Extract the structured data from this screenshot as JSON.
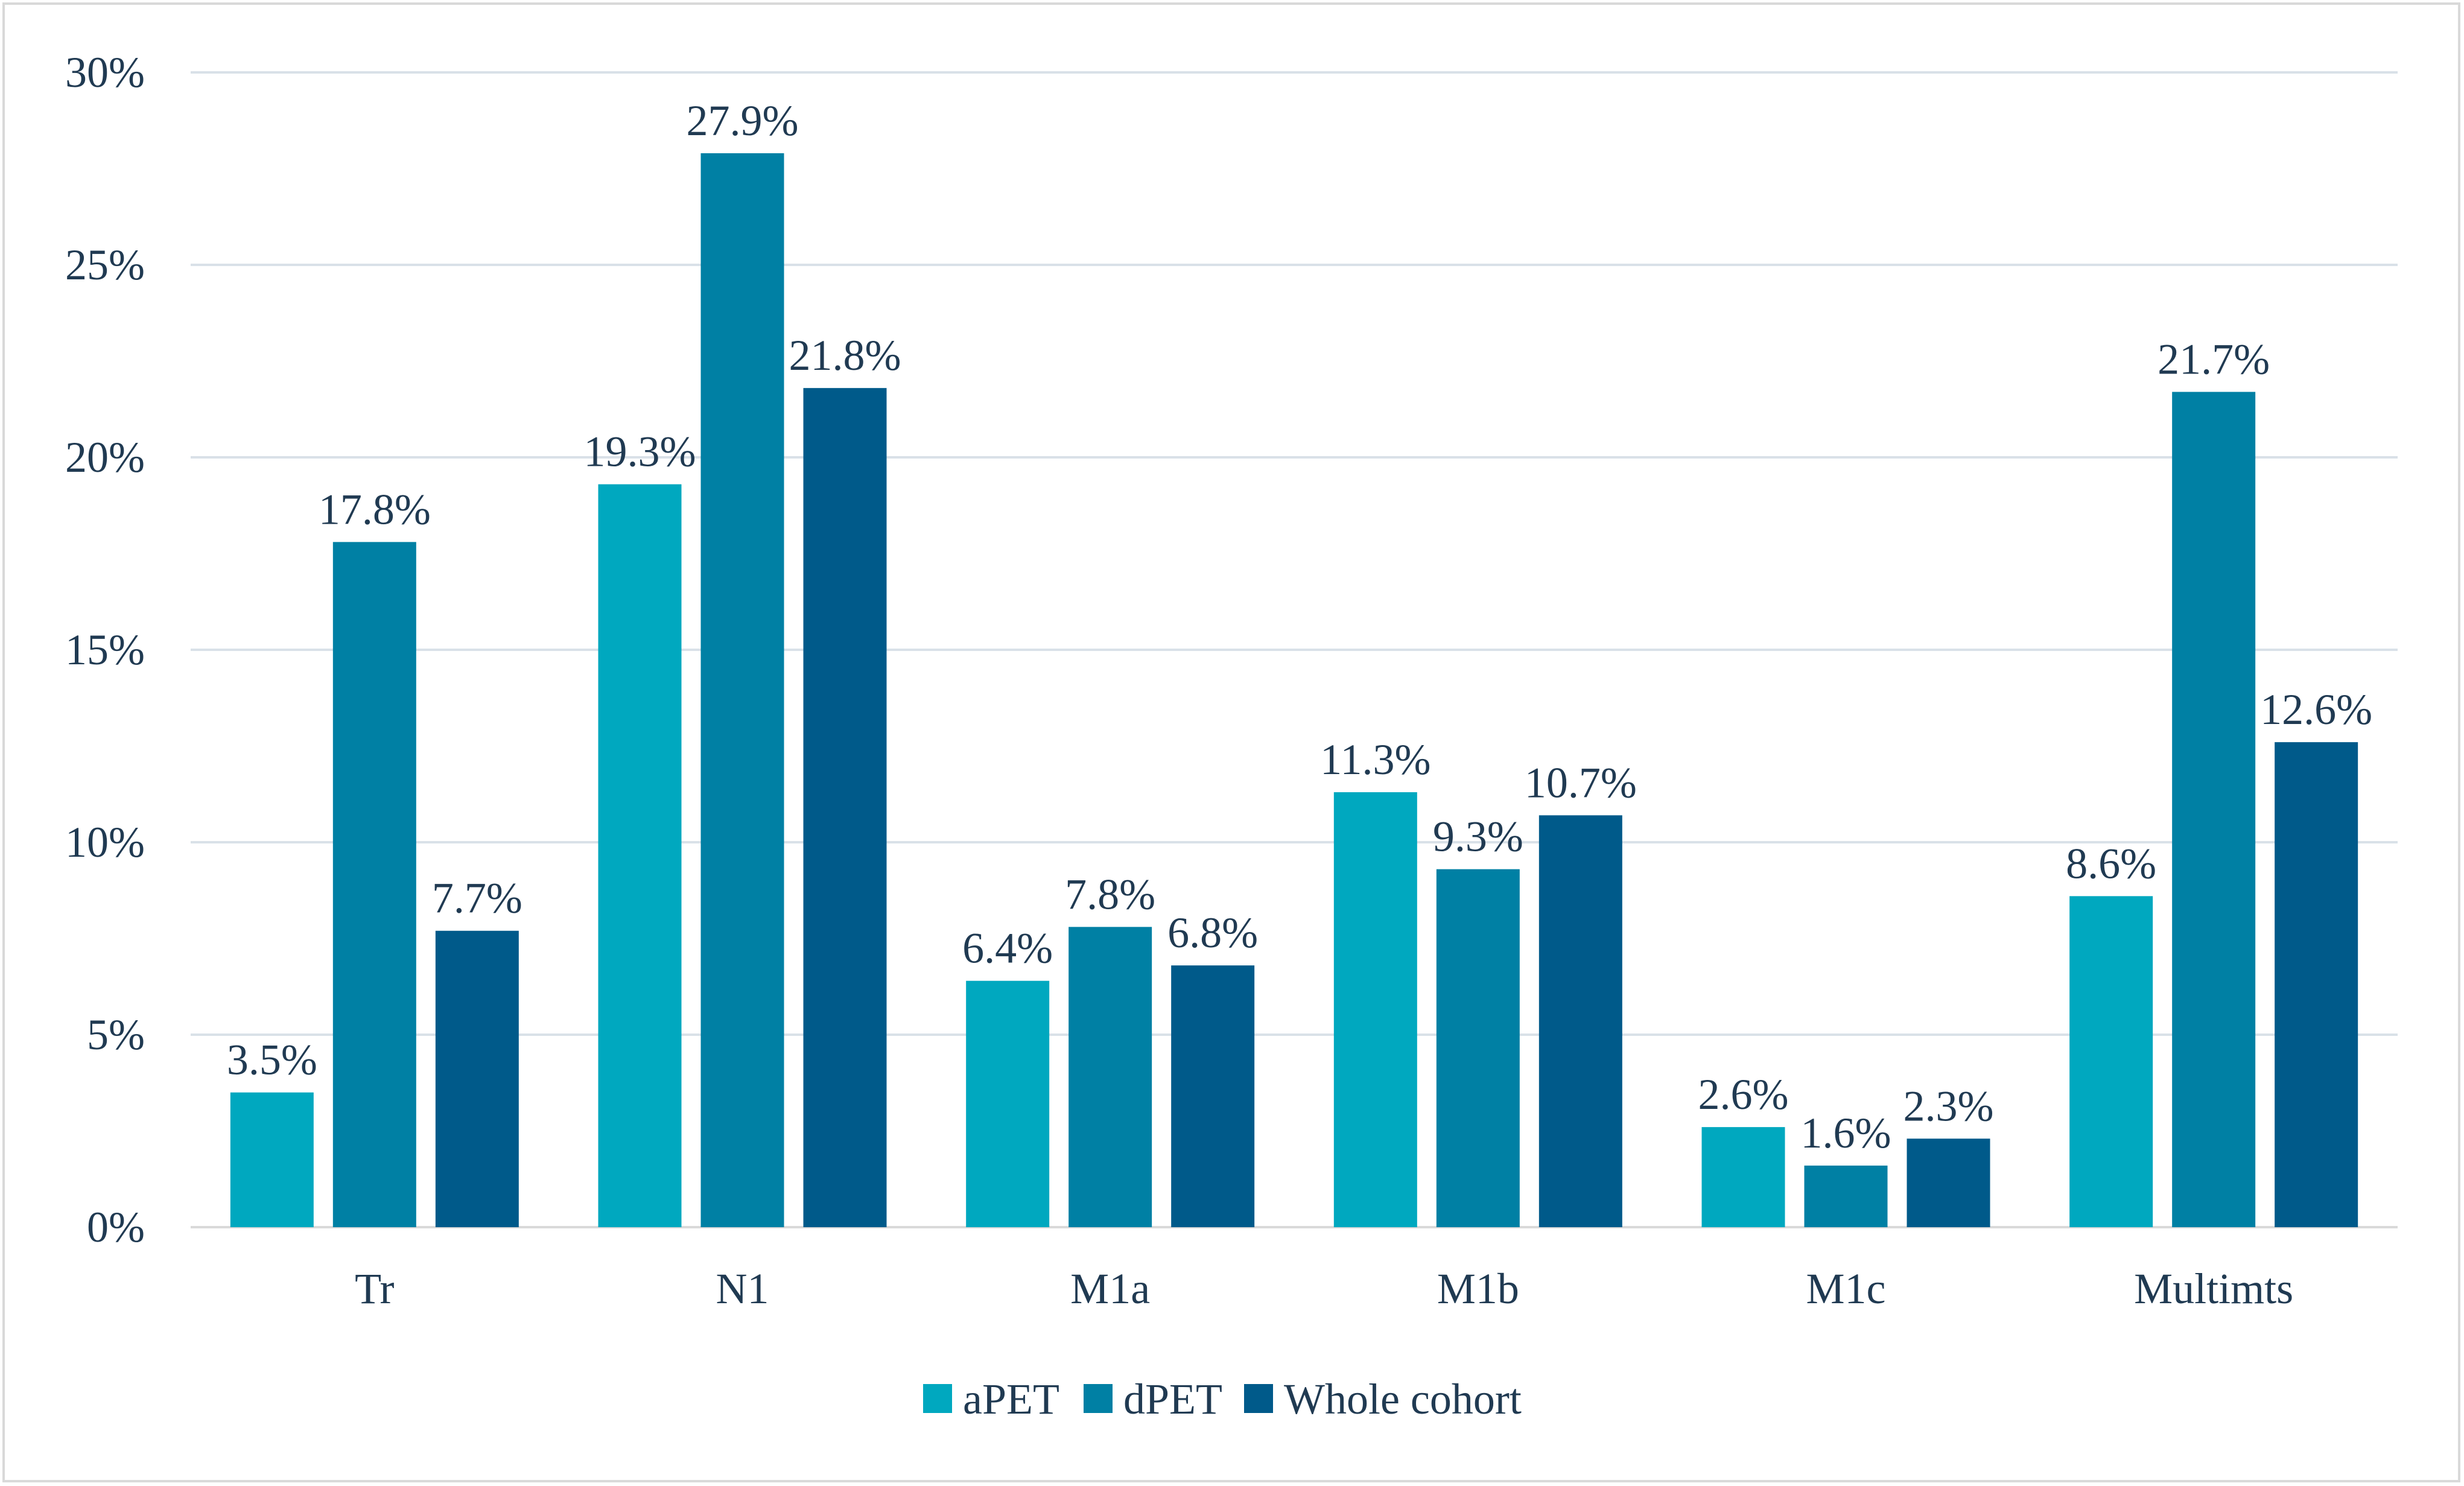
{
  "chart_data": {
    "type": "bar",
    "title": "",
    "xlabel": "",
    "ylabel": "",
    "categories": [
      "Tr",
      "N1",
      "M1a",
      "M1b",
      "M1c",
      "Multimts"
    ],
    "series": [
      {
        "name": "aPET",
        "values": [
          3.5,
          19.3,
          6.4,
          11.3,
          2.6,
          8.6
        ],
        "labels": [
          "3.5%",
          "19.3%",
          "6.4%",
          "11.3%",
          "2.6%",
          "8.6%"
        ],
        "color": "#00a8bf"
      },
      {
        "name": "dPET",
        "values": [
          17.8,
          27.9,
          7.8,
          9.3,
          1.6,
          21.7
        ],
        "labels": [
          "17.8%",
          "27.9%",
          "7.8%",
          "9.3%",
          "1.6%",
          "21.7%"
        ],
        "color": "#0080a4"
      },
      {
        "name": "Whole cohort",
        "values": [
          7.7,
          21.8,
          6.8,
          10.7,
          2.3,
          12.6
        ],
        "labels": [
          "7.7%",
          "21.8%",
          "6.8%",
          "10.7%",
          "2.3%",
          "12.6%"
        ],
        "color": "#005a8a"
      }
    ],
    "ylim": [
      0,
      30
    ],
    "yticks": [
      0,
      5,
      10,
      15,
      20,
      25,
      30
    ],
    "ytick_labels": [
      "0%",
      "5%",
      "10%",
      "15%",
      "20%",
      "25%",
      "30%"
    ],
    "grid": true,
    "legend_position": "bottom-center",
    "colors": {
      "grid": "#d9e1e8",
      "text": "#203a52",
      "axis": "#d9d9d9"
    }
  }
}
